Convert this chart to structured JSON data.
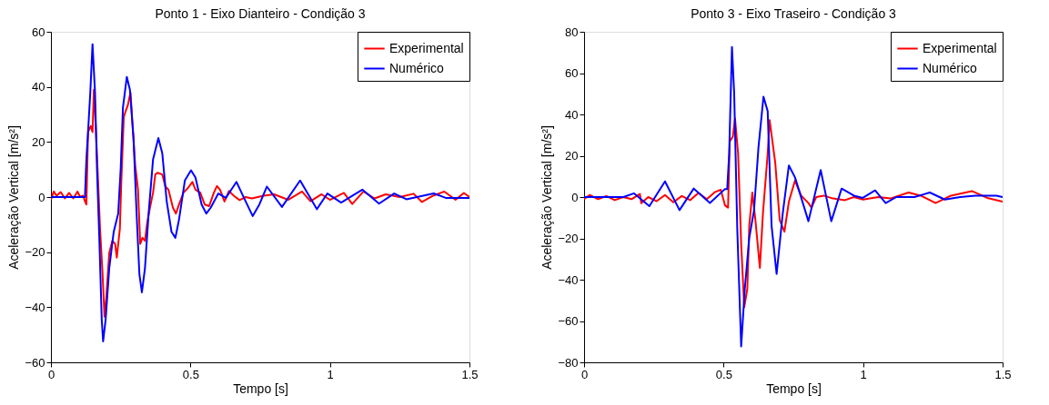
{
  "chart_data": [
    {
      "type": "line",
      "title": "Ponto 1 - Eixo Dianteiro - Condição 3",
      "xlabel": "Tempo [s]",
      "ylabel": "Aceleração Vertical [m/s²]",
      "xlim": [
        0,
        1.5
      ],
      "xticks": [
        0,
        0.5,
        1,
        1.5
      ],
      "ylim": [
        -60,
        60
      ],
      "yticks": [
        -60,
        -40,
        -20,
        0,
        20,
        40,
        60
      ],
      "grid": false,
      "legend": "top right",
      "marker": "none",
      "line_style": "solid",
      "series": [
        {
          "name": "Experimental",
          "color": "#ff0000",
          "x": [
            0,
            0.01,
            0.02,
            0.035,
            0.05,
            0.065,
            0.08,
            0.095,
            0.105,
            0.115,
            0.122,
            0.127,
            0.133,
            0.143,
            0.149,
            0.154,
            0.16,
            0.167,
            0.176,
            0.185,
            0.192,
            0.198,
            0.209,
            0.22,
            0.23,
            0.236,
            0.247,
            0.252,
            0.261,
            0.268,
            0.276,
            0.285,
            0.294,
            0.302,
            0.312,
            0.32,
            0.328,
            0.337,
            0.345,
            0.355,
            0.366,
            0.374,
            0.382,
            0.399,
            0.41,
            0.421,
            0.437,
            0.448,
            0.459,
            0.475,
            0.491,
            0.507,
            0.518,
            0.535,
            0.551,
            0.567,
            0.584,
            0.595,
            0.606,
            0.622,
            0.638,
            0.655,
            0.676,
            0.698,
            0.72,
            0.741,
            0.763,
            0.8,
            0.85,
            0.9,
            0.93,
            0.97,
            1.0,
            1.05,
            1.08,
            1.12,
            1.16,
            1.2,
            1.25,
            1.3,
            1.33,
            1.37,
            1.41,
            1.45,
            1.48,
            1.5
          ],
          "values": [
            -1,
            2,
            0.5,
            1.8,
            -0.5,
            1.5,
            -0.5,
            2,
            0,
            0.5,
            -1.5,
            -2.7,
            23.6,
            25.8,
            23.6,
            39,
            27,
            10.4,
            -11.5,
            -28,
            -43.4,
            -36.8,
            -20.3,
            -15.9,
            -17,
            -22,
            -11.5,
            5,
            29,
            31.3,
            33.5,
            38,
            23.6,
            11.5,
            2.7,
            -17,
            -14.8,
            -15.9,
            -9.3,
            -3.8,
            1.6,
            8.2,
            8.8,
            8.2,
            3.8,
            2.7,
            -3.8,
            -6,
            -2.7,
            1.6,
            3.3,
            5.5,
            2.7,
            1.6,
            -2.7,
            -3.3,
            1.6,
            4,
            2.7,
            -1.6,
            2.2,
            0.5,
            -1.1,
            0,
            -0.5,
            0,
            0.5,
            1,
            -1,
            2,
            -1.5,
            1,
            -1,
            1.5,
            -2.5,
            2,
            -0.5,
            1,
            0,
            1.2,
            -1.8,
            0.5,
            2,
            -1,
            1.5,
            0
          ]
        },
        {
          "name": "Numérico",
          "color": "#0000ff",
          "x": [
            0,
            0.122,
            0.127,
            0.133,
            0.141,
            0.149,
            0.158,
            0.165,
            0.174,
            0.182,
            0.187,
            0.196,
            0.209,
            0.225,
            0.241,
            0.25,
            0.258,
            0.272,
            0.283,
            0.296,
            0.307,
            0.317,
            0.326,
            0.337,
            0.35,
            0.366,
            0.385,
            0.399,
            0.415,
            0.432,
            0.446,
            0.459,
            0.48,
            0.502,
            0.518,
            0.54,
            0.557,
            0.573,
            0.6,
            0.627,
            0.665,
            0.698,
            0.723,
            0.747,
            0.774,
            0.828,
            0.893,
            0.953,
            0.991,
            1.04,
            1.116,
            1.176,
            1.23,
            1.274,
            1.372,
            1.415,
            1.5
          ],
          "values": [
            0,
            0,
            13.7,
            23.6,
            37.9,
            55.5,
            37.9,
            10.4,
            -17,
            -44.5,
            -52.4,
            -44.5,
            -25.8,
            -12.6,
            -6,
            10.4,
            32.4,
            43.6,
            39,
            21.4,
            -6,
            -28,
            -34.6,
            -25.8,
            -6,
            13.7,
            21.4,
            15.9,
            -1.6,
            -12.6,
            -14.8,
            -8.2,
            6,
            9.7,
            7.1,
            -2.7,
            -6,
            -3.8,
            1.3,
            -0.3,
            5.5,
            -1.6,
            -6.9,
            -2.7,
            3.8,
            -3.6,
            6,
            -4.4,
            1.3,
            -2,
            2.7,
            -2.4,
            1.3,
            -0.8,
            1.3,
            -0.3,
            -0.3
          ]
        }
      ]
    },
    {
      "type": "line",
      "title": "Ponto 3 - Eixo Traseiro - Condição 3",
      "xlabel": "Tempo [s]",
      "ylabel": "Aceleração Vertical [m/s²]",
      "xlim": [
        0,
        1.5
      ],
      "xticks": [
        0,
        0.5,
        1,
        1.5
      ],
      "ylim": [
        -80,
        80
      ],
      "yticks": [
        -80,
        -60,
        -40,
        -20,
        0,
        20,
        40,
        60,
        80
      ],
      "grid": false,
      "legend": "top right",
      "marker": "none",
      "line_style": "solid",
      "series": [
        {
          "name": "Experimental",
          "color": "#ff0000",
          "x": [
            0,
            0.02,
            0.05,
            0.08,
            0.11,
            0.14,
            0.17,
            0.2,
            0.205,
            0.23,
            0.26,
            0.29,
            0.32,
            0.35,
            0.38,
            0.41,
            0.44,
            0.47,
            0.49,
            0.505,
            0.516,
            0.522,
            0.533,
            0.541,
            0.552,
            0.563,
            0.574,
            0.585,
            0.592,
            0.603,
            0.614,
            0.63,
            0.641,
            0.658,
            0.665,
            0.685,
            0.701,
            0.718,
            0.734,
            0.756,
            0.778,
            0.804,
            0.815,
            0.832,
            0.859,
            0.892,
            0.935,
            0.967,
            1.0,
            1.054,
            1.098,
            1.163,
            1.206,
            1.26,
            1.315,
            1.39,
            1.445,
            1.5
          ],
          "values": [
            -1,
            1,
            -1,
            0.5,
            -1.5,
            0,
            -1,
            1.5,
            -3,
            0,
            -2,
            1,
            -2.5,
            0.5,
            -1.5,
            2,
            -1,
            2.5,
            3.5,
            -4,
            -5.1,
            27,
            29.2,
            38,
            21,
            -22.6,
            -53.3,
            -44.5,
            -13.9,
            2.2,
            -11,
            -34.3,
            -8,
            21,
            37.2,
            16.8,
            -11,
            -16.8,
            -2.2,
            8,
            0.7,
            -2.9,
            -5.1,
            0,
            0.7,
            -0.7,
            -1.5,
            0,
            -1.2,
            0,
            -0.7,
            2.2,
            0.7,
            -2.9,
            0.7,
            2.9,
            -0.4,
            -2.2
          ]
        },
        {
          "name": "Numérico",
          "color": "#0000ff",
          "x": [
            0,
            0.141,
            0.179,
            0.234,
            0.29,
            0.342,
            0.393,
            0.451,
            0.505,
            0.513,
            0.52,
            0.53,
            0.538,
            0.549,
            0.563,
            0.576,
            0.592,
            0.609,
            0.625,
            0.643,
            0.658,
            0.672,
            0.69,
            0.712,
            0.734,
            0.756,
            0.804,
            0.848,
            0.886,
            0.923,
            0.967,
            0.999,
            1.043,
            1.081,
            1.119,
            1.184,
            1.239,
            1.293,
            1.348,
            1.402,
            1.478,
            1.5
          ],
          "values": [
            0,
            0,
            1.8,
            -4.4,
            7.6,
            -6.3,
            4.1,
            -2.9,
            3.9,
            3.9,
            21,
            72.6,
            50,
            -15.3,
            -72.3,
            -44.5,
            -19.7,
            -6.6,
            24,
            48.6,
            41.6,
            -13.9,
            -37.2,
            -8,
            15.3,
            9.5,
            -11.7,
            13.1,
            -11.7,
            4.1,
            0.7,
            -0.4,
            3.2,
            -2.9,
            0,
            0,
            2.2,
            -1.2,
            0,
            0.7,
            0.7,
            0
          ]
        }
      ]
    }
  ]
}
